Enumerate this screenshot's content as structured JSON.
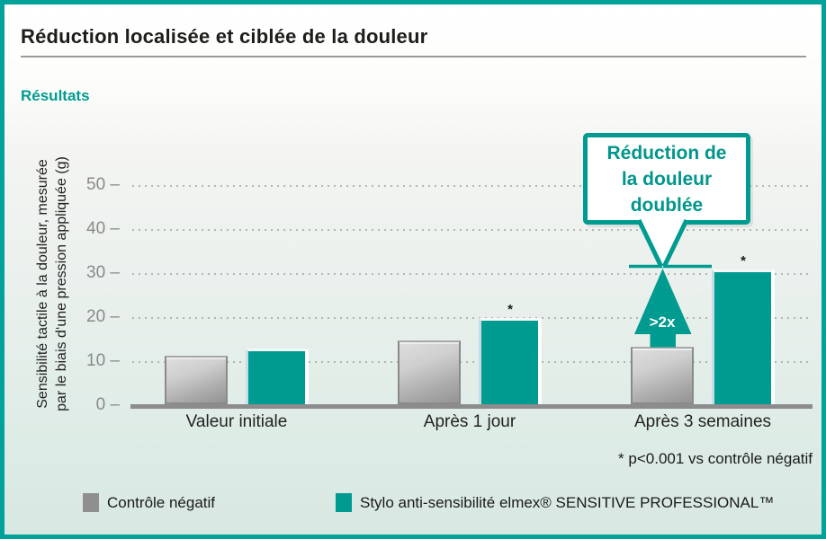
{
  "header": {
    "title": "Réduction localisée et ciblée de la douleur",
    "section_label": "Résultats"
  },
  "chart_data": {
    "type": "bar",
    "title": "Réduction localisée et ciblée de la douleur",
    "ylabel_lines": [
      "Sensibilité tactile à la douleur, mesurée",
      "par le biais d‘une pression appliquée (g)"
    ],
    "categories": [
      "Valeur initiale",
      "Après 1 jour",
      "Après 3 semaines"
    ],
    "series": [
      {
        "name": "Contrôle négatif",
        "color": "#8f8f8f",
        "values": [
          11.5,
          15,
          13.5
        ],
        "significant": [
          false,
          false,
          false
        ]
      },
      {
        "name": "Stylo anti-sensibilité elmex® SENSITIVE PROFESSIONAL™",
        "color": "#009b90",
        "values": [
          13,
          20,
          31
        ],
        "significant": [
          false,
          true,
          true
        ]
      }
    ],
    "yticks": [
      0,
      10,
      20,
      30,
      40,
      50
    ],
    "ylim": [
      0,
      55
    ],
    "grid": "dotted-horizontal",
    "legend_position": "bottom",
    "sig_marker": "*"
  },
  "annotation": {
    "lines": [
      "Réduction de",
      "la douleur",
      "doublée"
    ],
    "arrow_label": ">2x",
    "accent_color": "#009b90"
  },
  "footnote": "* p<0.001 vs contrôle négatif",
  "legend": {
    "items": [
      {
        "label": "Contrôle négatif",
        "color": "#8f8f8f"
      },
      {
        "label": "Stylo anti-sensibilité elmex® SENSITIVE PROFESSIONAL™",
        "color": "#009b90"
      }
    ]
  },
  "frame": {
    "accent_color": "#00a29a"
  }
}
